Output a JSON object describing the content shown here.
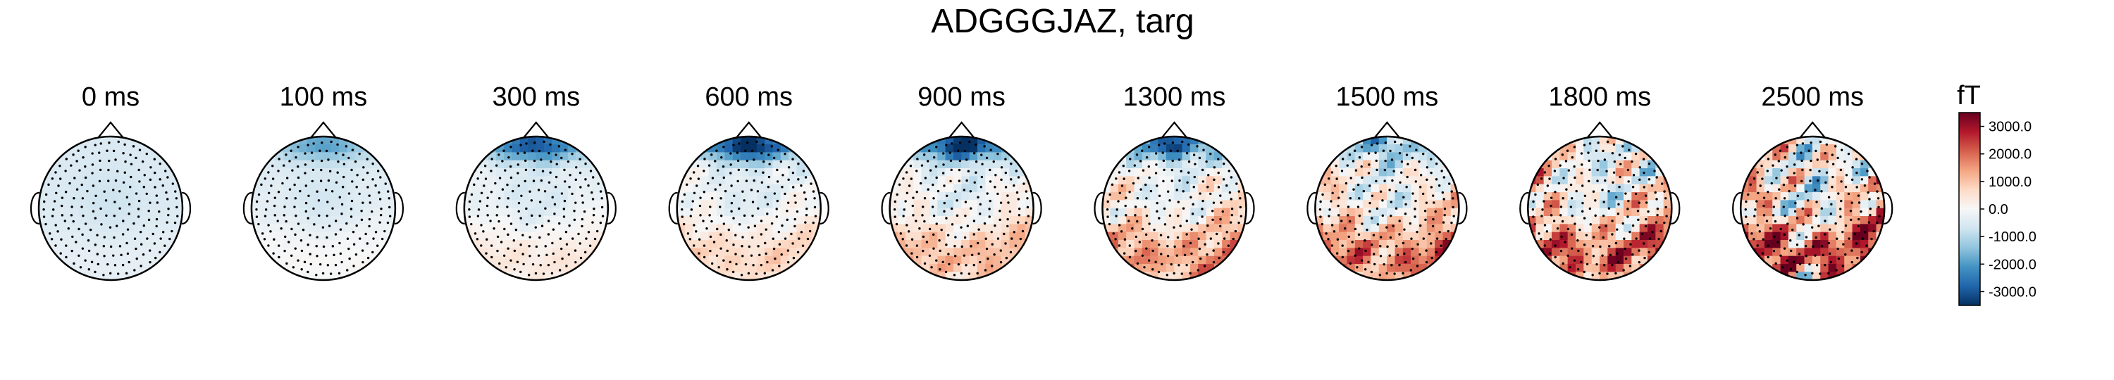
{
  "chart_data": {
    "type": "heatmap",
    "title": "ADGGGJAZ, targ",
    "panels": [
      {
        "label": "0 ms",
        "time_ms": 0
      },
      {
        "label": "100 ms",
        "time_ms": 100
      },
      {
        "label": "300 ms",
        "time_ms": 300
      },
      {
        "label": "600 ms",
        "time_ms": 600
      },
      {
        "label": "900 ms",
        "time_ms": 900
      },
      {
        "label": "1300 ms",
        "time_ms": 1300
      },
      {
        "label": "1500 ms",
        "time_ms": 1500
      },
      {
        "label": "1800 ms",
        "time_ms": 1800
      },
      {
        "label": "2500 ms",
        "time_ms": 2500
      }
    ],
    "colorbar": {
      "unit": "fT",
      "vmin": -3500,
      "vmax": 3500,
      "ticks": [
        3000,
        2000,
        1000,
        0,
        -1000,
        -2000,
        -3000
      ],
      "tick_labels": [
        "3000.0",
        "2000.0",
        "1000.0",
        "0.0",
        "-1000.0",
        "-2000.0",
        "-3000.0"
      ],
      "colormap": "RdBu_r",
      "colors": {
        "low": "#053061",
        "mid": "#f7f7f7",
        "high": "#67001f"
      }
    }
  }
}
